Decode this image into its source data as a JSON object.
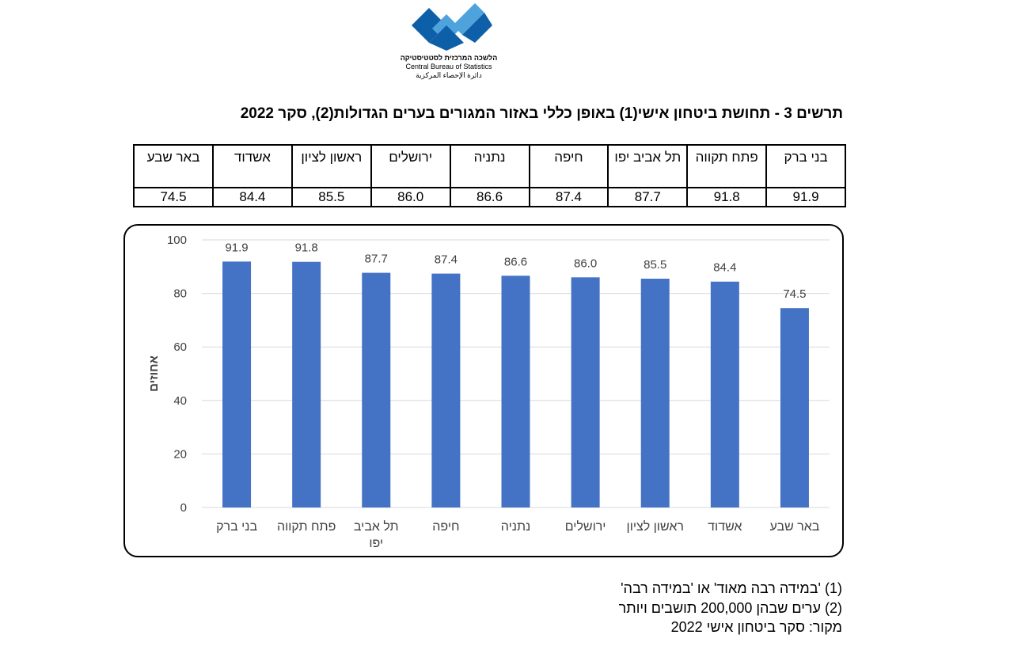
{
  "logo": {
    "org_he": "הלשכה המרכזית לסטטיסטיקה",
    "org_en": "Central Bureau of Statistics",
    "org_ar": "دائرة الإحصاء المركزية",
    "colors": {
      "dark": "#0d5fa8",
      "light": "#4fa3dc"
    }
  },
  "title": "תרשים 3 - תחושת ביטחון אישי(1) באופן כללי באזור המגורים בערים הגדולות(2), סקר 2022",
  "table": {
    "cities": [
      "בני ברק",
      "פתח תקווה",
      "תל אביב יפו",
      "חיפה",
      "נתניה",
      "ירושלים",
      "ראשון לציון",
      "אשדוד",
      "באר שבע"
    ],
    "values": [
      "91.9",
      "91.8",
      "87.7",
      "87.4",
      "86.6",
      "86.0",
      "85.5",
      "84.4",
      "74.5"
    ]
  },
  "chart_data": {
    "type": "bar",
    "categories": [
      "בני ברק",
      "פתח תקווה",
      "תל אביב יפו",
      "חיפה",
      "נתניה",
      "ירושלים",
      "ראשון לציון",
      "אשדוד",
      "באר שבע"
    ],
    "values": [
      91.9,
      91.8,
      87.7,
      87.4,
      86.6,
      86.0,
      85.5,
      84.4,
      74.5
    ],
    "data_labels": [
      "91.9",
      "91.8",
      "87.7",
      "87.4",
      "86.6",
      "86.0",
      "85.5",
      "84.4",
      "74.5"
    ],
    "ylabel": "אחוזים",
    "xlabel": "",
    "ylim": [
      0,
      100
    ],
    "yticks": [
      0,
      20,
      40,
      60,
      80,
      100
    ],
    "grid": true,
    "legend": "none",
    "bar_color": "#4472c4",
    "grid_color": "#d9d9d9",
    "label_color": "#404040"
  },
  "notes": [
    "(1) 'במידה רבה מאוד' או 'במידה רבה'",
    "(2) ערים שבהן 200,000 תושבים ויותר",
    "מקור: סקר ביטחון אישי 2022"
  ]
}
